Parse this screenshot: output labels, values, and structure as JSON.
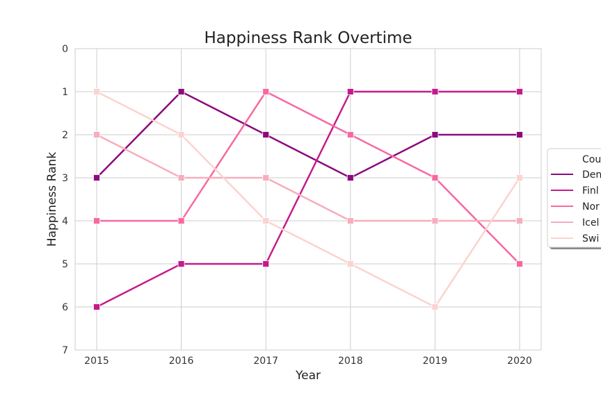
{
  "chart_data": {
    "type": "line",
    "title": "Happiness Rank Overtime",
    "xlabel": "Year",
    "ylabel": "Happiness Rank",
    "x": [
      "2015",
      "2016",
      "2017",
      "2018",
      "2019",
      "2020"
    ],
    "y_ticks": [
      "0",
      "1",
      "2",
      "3",
      "4",
      "5",
      "6",
      "7"
    ],
    "ylim": [
      0,
      7
    ],
    "y_inverted": true,
    "grid": true,
    "marker": "square",
    "legend": {
      "title": "Cou",
      "placement": "right"
    },
    "series": [
      {
        "name": "Den",
        "color": "#8b0a7d",
        "values": [
          3,
          1,
          2,
          3,
          2,
          2
        ]
      },
      {
        "name": "Finl",
        "color": "#c51b8a",
        "values": [
          6,
          5,
          5,
          1,
          1,
          1
        ]
      },
      {
        "name": "Nor",
        "color": "#f768a1",
        "values": [
          4,
          4,
          1,
          2,
          3,
          5
        ]
      },
      {
        "name": "Icel",
        "color": "#f6adbd",
        "values": [
          2,
          3,
          3,
          4,
          4,
          4
        ]
      },
      {
        "name": "Swi",
        "color": "#fbd3cf",
        "values": [
          1,
          2,
          4,
          5,
          6,
          3
        ]
      }
    ]
  }
}
